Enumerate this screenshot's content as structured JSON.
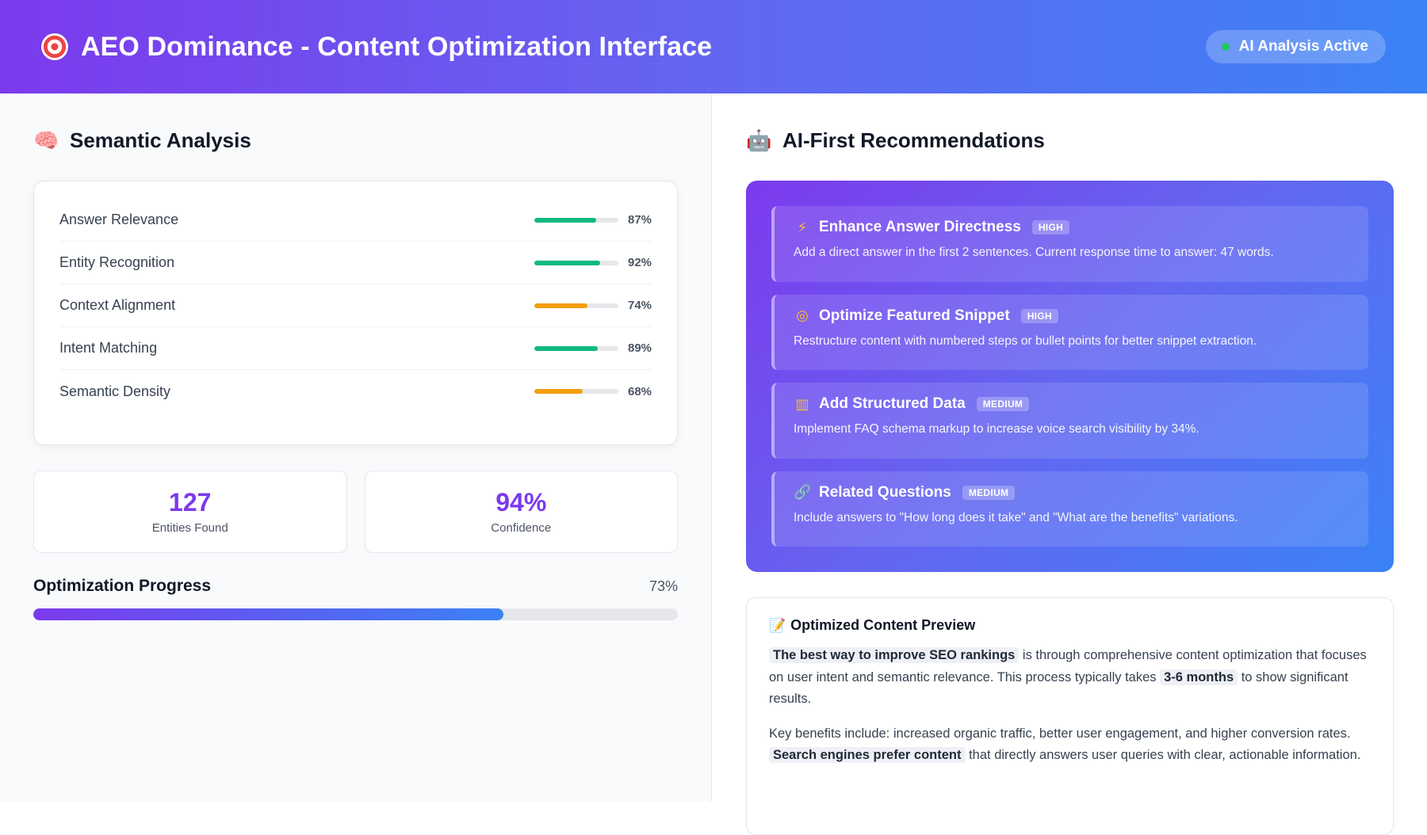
{
  "header": {
    "title": "AEO Dominance - Content Optimization Interface",
    "title_icon": "target-icon",
    "status_label": "AI Analysis Active",
    "status_color": "#22c55e"
  },
  "semantic": {
    "title": "Semantic Analysis",
    "icon": "brain-icon",
    "metrics": [
      {
        "label": "Answer Relevance",
        "value": "87%",
        "fraction": 0.87,
        "color": "#10b981"
      },
      {
        "label": "Entity Recognition",
        "value": "92%",
        "fraction": 0.92,
        "color": "#10b981"
      },
      {
        "label": "Context Alignment",
        "value": "74%",
        "fraction": 0.74,
        "color": "#f59e0b"
      },
      {
        "label": "Intent Matching",
        "value": "89%",
        "fraction": 0.89,
        "color": "#10b981"
      },
      {
        "label": "Semantic Density",
        "value": "68%",
        "fraction": 0.68,
        "color": "#f59e0b"
      }
    ],
    "stats": [
      {
        "value": "127",
        "label": "Entities Found"
      },
      {
        "value": "94%",
        "label": "Confidence"
      }
    ],
    "progress": {
      "title": "Optimization Progress",
      "value": "73%",
      "fraction": 0.73
    }
  },
  "recommendations": {
    "title": "AI-First Recommendations",
    "icon": "robot-icon",
    "items": [
      {
        "icon": "lightning-icon",
        "glyph": "⚡",
        "title": "Enhance Answer Directness",
        "badge": "HIGH",
        "desc": "Add a direct answer in the first 2 sentences. Current response time to answer: 47 words."
      },
      {
        "icon": "target-icon",
        "glyph": "◎",
        "title": "Optimize Featured Snippet",
        "badge": "HIGH",
        "desc": "Restructure content with numbered steps or bullet points for better snippet extraction."
      },
      {
        "icon": "bar-chart-icon",
        "glyph": "▥",
        "title": "Add Structured Data",
        "badge": "MEDIUM",
        "desc": "Implement FAQ schema markup to increase voice search visibility by 34%."
      },
      {
        "icon": "link-icon",
        "glyph": "🔗",
        "title": "Related Questions",
        "badge": "MEDIUM",
        "desc": "Include answers to \"How long does it take\" and \"What are the benefits\" variations."
      }
    ]
  },
  "preview": {
    "title": "Optimized Content Preview",
    "icon": "memo-icon",
    "p1": {
      "hl1": "The best way to improve SEO rankings",
      "t1": " is through comprehensive content optimization that focuses on user intent and semantic relevance. This process typically takes ",
      "hl2": "3-6 months",
      "t2": " to show significant results."
    },
    "p2": {
      "t1": "Key benefits include: increased organic traffic, better user engagement, and higher conversion rates. ",
      "hl1": "Search engines prefer content",
      "t2": " that directly answers user queries with clear, actionable information."
    }
  }
}
